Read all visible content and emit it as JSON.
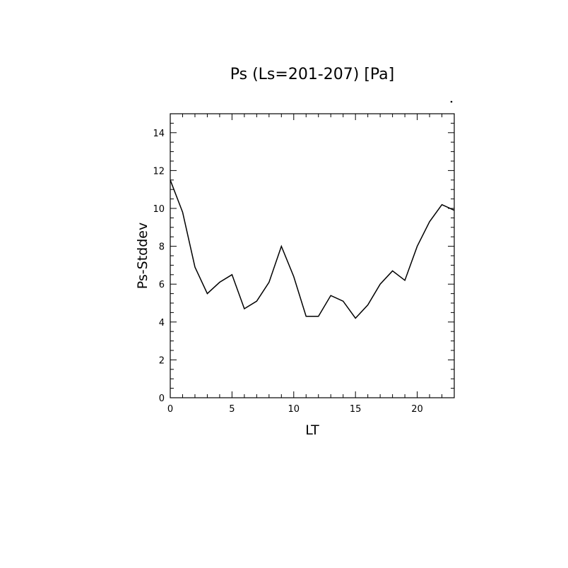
{
  "chart_data": {
    "type": "line",
    "title": "Ps (Ls=201-207) [Pa]",
    "xlabel": "LT",
    "ylabel": "Ps-Stddev",
    "xlim": [
      0,
      23
    ],
    "ylim": [
      0,
      15
    ],
    "xticks": [
      0,
      5,
      10,
      15,
      20
    ],
    "yticks": [
      0,
      2,
      4,
      6,
      8,
      10,
      12,
      14
    ],
    "x": [
      0,
      1,
      2,
      3,
      4,
      5,
      6,
      7,
      8,
      9,
      10,
      11,
      12,
      13,
      14,
      15,
      16,
      17,
      18,
      19,
      20,
      21,
      22,
      23
    ],
    "series": [
      {
        "values": [
          11.5,
          9.8,
          6.9,
          5.5,
          6.1,
          6.5,
          4.7,
          5.1,
          6.1,
          8.0,
          6.4,
          4.3,
          4.3,
          5.4,
          5.1,
          4.2,
          4.9,
          6.0,
          6.7,
          6.2,
          8.0,
          9.3,
          10.2,
          9.9
        ]
      }
    ],
    "grid": false,
    "legend": "none",
    "line_color": "#000000"
  }
}
